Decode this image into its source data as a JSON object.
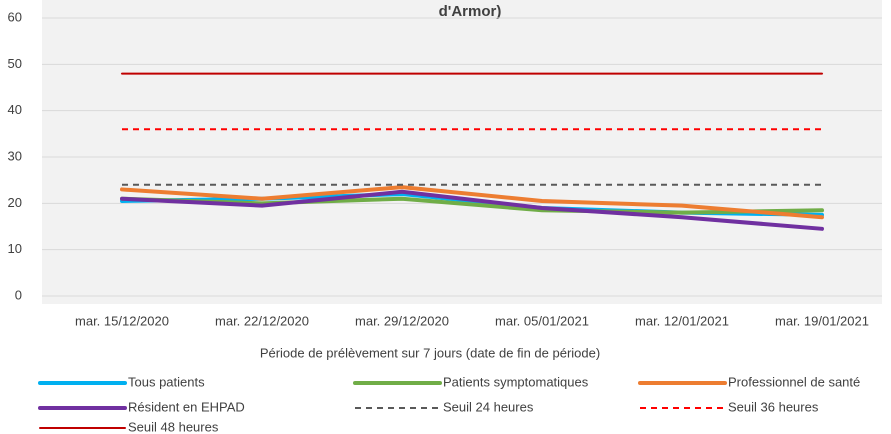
{
  "chart_data": {
    "type": "line",
    "title": "d'Armor)",
    "x_label": "Période de prélèvement sur 7 jours (date de fin de période)",
    "categories": [
      "mar. 15/12/2020",
      "mar. 22/12/2020",
      "mar. 29/12/2020",
      "mar. 05/01/2021",
      "mar. 12/01/2021",
      "mar. 19/01/2021"
    ],
    "series": [
      {
        "name": "Tous patients",
        "color": "#00b0f0",
        "line_width": 4,
        "dash": false,
        "values": [
          20.5,
          21,
          22,
          19,
          18,
          17.5
        ]
      },
      {
        "name": "Patients symptomatiques",
        "color": "#70ad47",
        "line_width": 4,
        "dash": false,
        "values": [
          21,
          20,
          21,
          18.5,
          18,
          18.5
        ]
      },
      {
        "name": "Professionnel de santé",
        "color": "#ed7d31",
        "line_width": 4,
        "dash": false,
        "values": [
          23,
          21,
          23.5,
          20.5,
          19.5,
          17
        ]
      },
      {
        "name": "Résident en EHPAD",
        "color": "#7030a0",
        "line_width": 4,
        "dash": false,
        "values": [
          21,
          19.5,
          22.5,
          19,
          17,
          14.5
        ]
      },
      {
        "name": "Seuil 24 heures",
        "color": "#595959",
        "line_width": 2,
        "dash": true,
        "values": [
          24,
          24,
          24,
          24,
          24,
          24
        ]
      },
      {
        "name": "Seuil 36 heures",
        "color": "#ff0000",
        "line_width": 2,
        "dash": true,
        "values": [
          36,
          36,
          36,
          36,
          36,
          36
        ]
      },
      {
        "name": "Seuil 48 heures",
        "color": "#c00000",
        "line_width": 2,
        "dash": false,
        "values": [
          48,
          48,
          48,
          48,
          48,
          48
        ]
      }
    ],
    "ylim": [
      0,
      60
    ],
    "yticks": [
      0,
      10,
      20,
      30,
      40,
      50,
      60
    ],
    "grid": true,
    "legend": "bottom"
  }
}
